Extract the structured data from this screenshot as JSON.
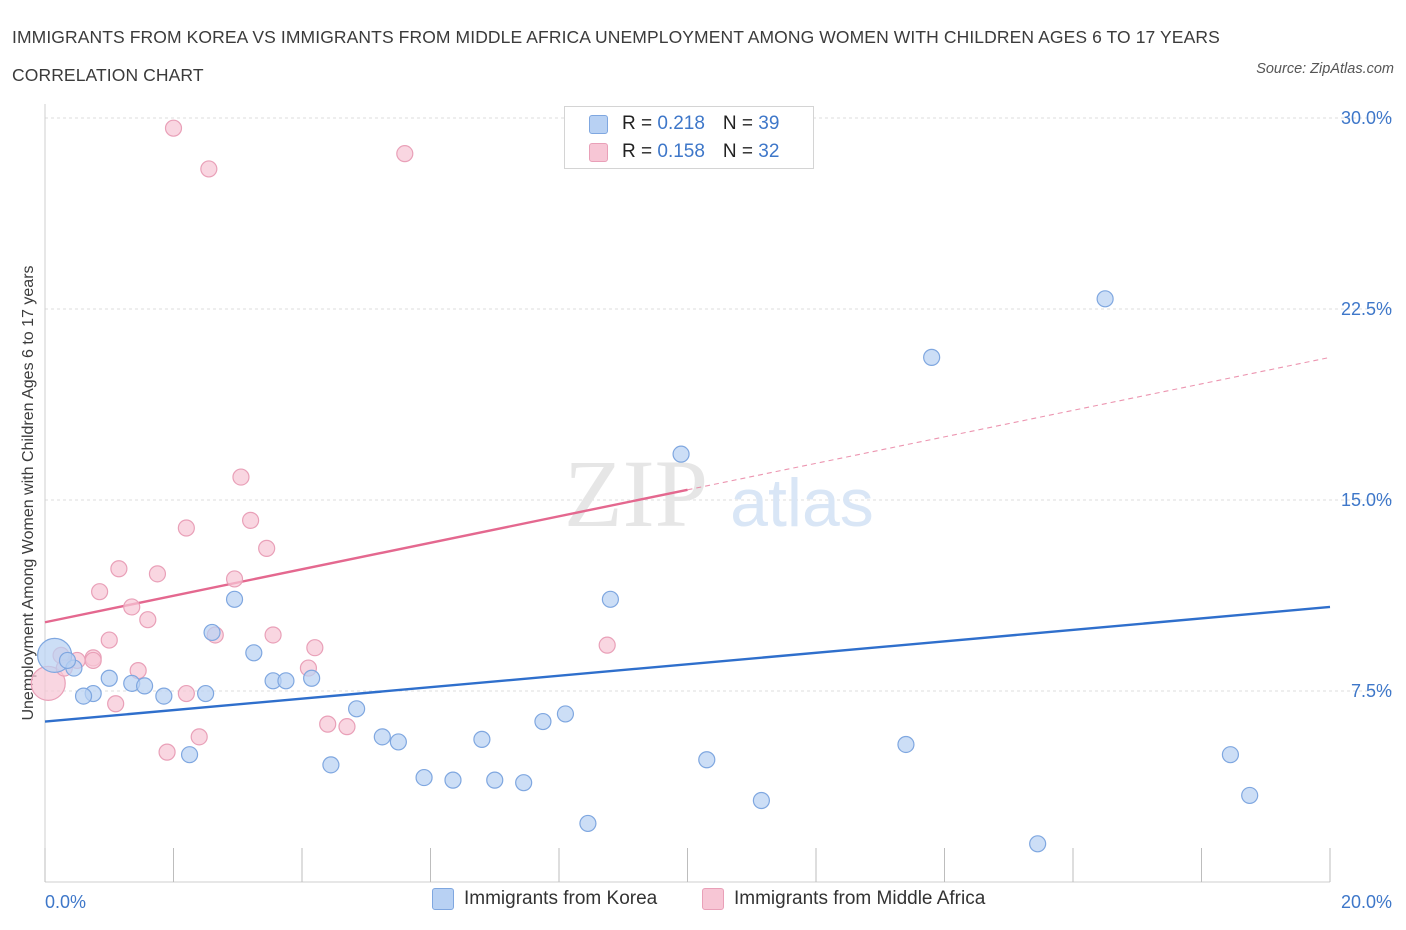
{
  "header": {
    "title": "IMMIGRANTS FROM KOREA VS IMMIGRANTS FROM MIDDLE AFRICA UNEMPLOYMENT AMONG WOMEN WITH CHILDREN AGES 6 TO 17 YEARS CORRELATION CHART",
    "source": "Source: ZipAtlas.com"
  },
  "legend": {
    "korea": {
      "r_label": "R = ",
      "r_value": "0.218",
      "n_label": "N = ",
      "n_value": "39"
    },
    "africa": {
      "r_label": "R = ",
      "r_value": "0.158",
      "n_label": "N = ",
      "n_value": "32"
    }
  },
  "watermark": {
    "zip": "ZIP",
    "atlas": "atlas"
  },
  "colors": {
    "korea_fill": "#b8d1f3",
    "korea_stroke": "#7fa7e0",
    "korea_line": "#2f6fcc",
    "africa_fill": "#f7c6d5",
    "africa_stroke": "#e9a0b8",
    "africa_line": "#e4688f",
    "tick_text": "#3e77c9",
    "grid": "#dddddd"
  },
  "chart_data": {
    "type": "scatter",
    "title": "IMMIGRANTS FROM KOREA VS IMMIGRANTS FROM MIDDLE AFRICA UNEMPLOYMENT AMONG WOMEN WITH CHILDREN AGES 6 TO 17 YEARS CORRELATION CHART",
    "xlabel": "",
    "ylabel": "Unemployment Among Women with Children Ages 6 to 17 years",
    "xlim": [
      0,
      20
    ],
    "ylim": [
      0,
      30
    ],
    "x_tick_labels": [
      "0.0%",
      "20.0%"
    ],
    "y_ticks": [
      7.5,
      15.0,
      22.5,
      30.0
    ],
    "y_tick_labels": [
      "7.5%",
      "15.0%",
      "22.5%",
      "30.0%"
    ],
    "grid": true,
    "legend_position": "top-center",
    "series": [
      {
        "name": "Immigrants from Korea",
        "R": 0.218,
        "N": 39,
        "trend": {
          "x": [
            0,
            20
          ],
          "y": [
            6.3,
            10.8
          ],
          "solid_until": 20
        },
        "points": [
          [
            0.15,
            8.9,
            "l"
          ],
          [
            0.45,
            8.4
          ],
          [
            0.35,
            8.7
          ],
          [
            0.75,
            7.4
          ],
          [
            0.6,
            7.3
          ],
          [
            1.35,
            7.8
          ],
          [
            1.0,
            8.0
          ],
          [
            1.55,
            7.7
          ],
          [
            1.85,
            7.3
          ],
          [
            2.25,
            5.0
          ],
          [
            2.5,
            7.4
          ],
          [
            2.6,
            9.8
          ],
          [
            2.95,
            11.1
          ],
          [
            3.25,
            9.0
          ],
          [
            3.55,
            7.9
          ],
          [
            3.75,
            7.9
          ],
          [
            4.15,
            8.0
          ],
          [
            4.45,
            4.6
          ],
          [
            4.85,
            6.8
          ],
          [
            5.25,
            5.7
          ],
          [
            5.5,
            5.5
          ],
          [
            5.9,
            4.1
          ],
          [
            6.35,
            4.0
          ],
          [
            6.8,
            5.6
          ],
          [
            7.0,
            4.0
          ],
          [
            7.45,
            3.9
          ],
          [
            7.75,
            6.3
          ],
          [
            8.1,
            6.6
          ],
          [
            8.45,
            2.3
          ],
          [
            8.8,
            11.1
          ],
          [
            9.9,
            16.8
          ],
          [
            10.3,
            4.8
          ],
          [
            11.15,
            3.2
          ],
          [
            13.4,
            5.4
          ],
          [
            13.8,
            20.6
          ],
          [
            15.45,
            1.5
          ],
          [
            16.5,
            22.9
          ],
          [
            18.45,
            5.0
          ],
          [
            18.75,
            3.4
          ]
        ]
      },
      {
        "name": "Immigrants from Middle Africa",
        "R": 0.158,
        "N": 32,
        "trend": {
          "x": [
            0,
            20
          ],
          "y": [
            10.2,
            20.6
          ],
          "solid_until": 10
        },
        "points": [
          [
            0.05,
            7.8,
            "l"
          ],
          [
            0.25,
            8.9
          ],
          [
            0.5,
            8.7
          ],
          [
            0.3,
            8.4
          ],
          [
            0.75,
            8.8
          ],
          [
            0.85,
            11.4
          ],
          [
            1.0,
            9.5
          ],
          [
            1.1,
            7.0
          ],
          [
            1.15,
            12.3
          ],
          [
            1.35,
            10.8
          ],
          [
            1.45,
            8.3
          ],
          [
            1.6,
            10.3
          ],
          [
            1.75,
            12.1
          ],
          [
            1.9,
            5.1
          ],
          [
            2.0,
            29.6
          ],
          [
            2.2,
            13.9
          ],
          [
            2.2,
            7.4
          ],
          [
            2.4,
            5.7
          ],
          [
            2.55,
            28.0
          ],
          [
            2.65,
            9.7
          ],
          [
            2.95,
            11.9
          ],
          [
            3.05,
            15.9
          ],
          [
            3.2,
            14.2
          ],
          [
            3.45,
            13.1
          ],
          [
            3.55,
            9.7
          ],
          [
            4.1,
            8.4
          ],
          [
            4.2,
            9.2
          ],
          [
            4.4,
            6.2
          ],
          [
            4.7,
            6.1
          ],
          [
            5.6,
            28.6
          ],
          [
            8.75,
            9.3
          ],
          [
            0.75,
            8.7
          ]
        ]
      }
    ]
  },
  "bottom_legend": {
    "korea_label": "Immigrants from Korea",
    "africa_label": "Immigrants from Middle Africa"
  }
}
